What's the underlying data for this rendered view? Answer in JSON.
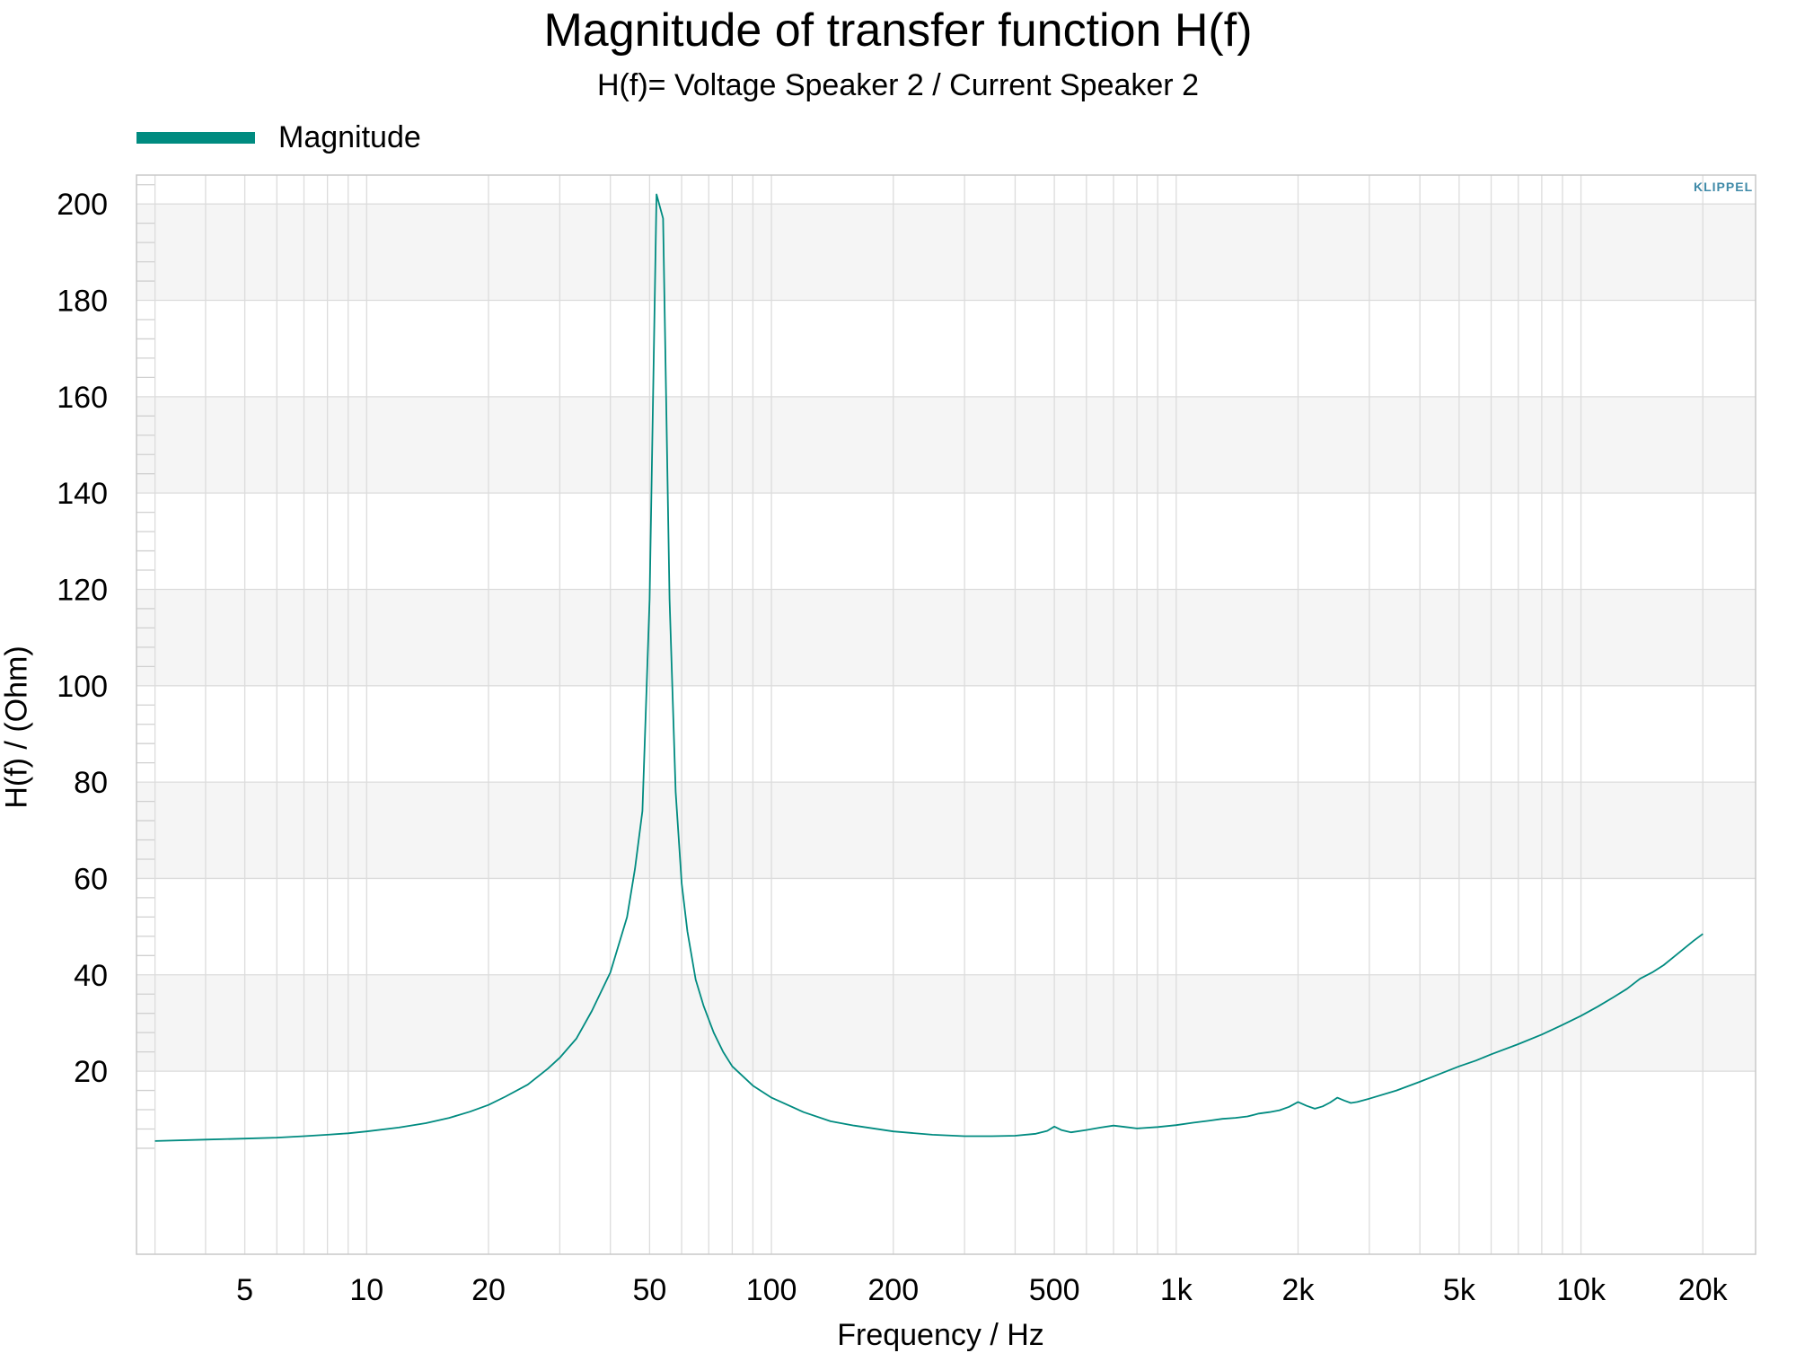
{
  "chart_data": {
    "type": "line",
    "title": "Magnitude of transfer function H(f)",
    "subtitle": "H(f)= Voltage Speaker 2 / Current Speaker 2",
    "xlabel": "Frequency / Hz",
    "ylabel": "H(f) / (Ohm)",
    "x_scale": "log",
    "xlim": [
      2.7,
      27000
    ],
    "ylim": [
      -18,
      206
    ],
    "x_ticks": [
      {
        "value": 5,
        "label": "5"
      },
      {
        "value": 10,
        "label": "10"
      },
      {
        "value": 20,
        "label": "20"
      },
      {
        "value": 50,
        "label": "50"
      },
      {
        "value": 100,
        "label": "100"
      },
      {
        "value": 200,
        "label": "200"
      },
      {
        "value": 500,
        "label": "500"
      },
      {
        "value": 1000,
        "label": "1k"
      },
      {
        "value": 2000,
        "label": "2k"
      },
      {
        "value": 5000,
        "label": "5k"
      },
      {
        "value": 10000,
        "label": "10k"
      },
      {
        "value": 20000,
        "label": "20k"
      }
    ],
    "y_ticks": [
      20,
      40,
      60,
      80,
      100,
      120,
      140,
      160,
      180,
      200
    ],
    "grid": true,
    "legend_position": "top-left",
    "series": [
      {
        "name": "Magnitude",
        "color": "#008b80",
        "x": [
          3,
          4,
          5,
          6,
          7,
          8,
          9,
          10,
          12,
          14,
          16,
          18,
          20,
          22,
          25,
          28,
          30,
          33,
          36,
          40,
          44,
          46,
          48,
          50,
          52,
          54,
          56,
          58,
          60,
          62,
          65,
          68,
          72,
          76,
          80,
          90,
          100,
          120,
          140,
          160,
          200,
          250,
          300,
          350,
          400,
          450,
          480,
          500,
          520,
          550,
          600,
          650,
          700,
          750,
          800,
          900,
          1000,
          1100,
          1200,
          1300,
          1400,
          1500,
          1600,
          1700,
          1800,
          1900,
          2000,
          2100,
          2200,
          2300,
          2400,
          2500,
          2600,
          2700,
          2800,
          3000,
          3500,
          4000,
          4500,
          5000,
          5500,
          6000,
          7000,
          8000,
          9000,
          10000,
          11000,
          12000,
          13000,
          14000,
          15000,
          16000,
          17000,
          18000,
          19000,
          20000
        ],
        "y": [
          5.5,
          5.8,
          6.0,
          6.2,
          6.5,
          6.8,
          7.1,
          7.5,
          8.3,
          9.2,
          10.3,
          11.6,
          13.0,
          14.7,
          17.2,
          20.5,
          22.8,
          26.8,
          32.5,
          40.5,
          52.0,
          62.0,
          74.0,
          118.0,
          202.0,
          197.0,
          118.0,
          78.0,
          59.0,
          49.0,
          39.0,
          33.5,
          28.0,
          24.0,
          21.0,
          17.0,
          14.5,
          11.5,
          9.6,
          8.7,
          7.5,
          6.8,
          6.5,
          6.5,
          6.6,
          7.0,
          7.6,
          8.5,
          7.8,
          7.3,
          7.8,
          8.3,
          8.7,
          8.4,
          8.1,
          8.4,
          8.8,
          9.3,
          9.7,
          10.1,
          10.3,
          10.6,
          11.2,
          11.5,
          11.9,
          12.6,
          13.6,
          12.8,
          12.2,
          12.7,
          13.5,
          14.5,
          13.9,
          13.4,
          13.6,
          14.3,
          16.0,
          17.8,
          19.5,
          21.0,
          22.2,
          23.5,
          25.6,
          27.6,
          29.6,
          31.5,
          33.4,
          35.3,
          37.1,
          39.2,
          40.5,
          42.0,
          43.8,
          45.5,
          47.1,
          48.5
        ]
      }
    ]
  },
  "logo_text": "KLIPPEL",
  "colors": {
    "line": "#008b80",
    "band": "#f5f5f5",
    "grid": "#dcdcdc",
    "frame": "#c8c8c8"
  }
}
